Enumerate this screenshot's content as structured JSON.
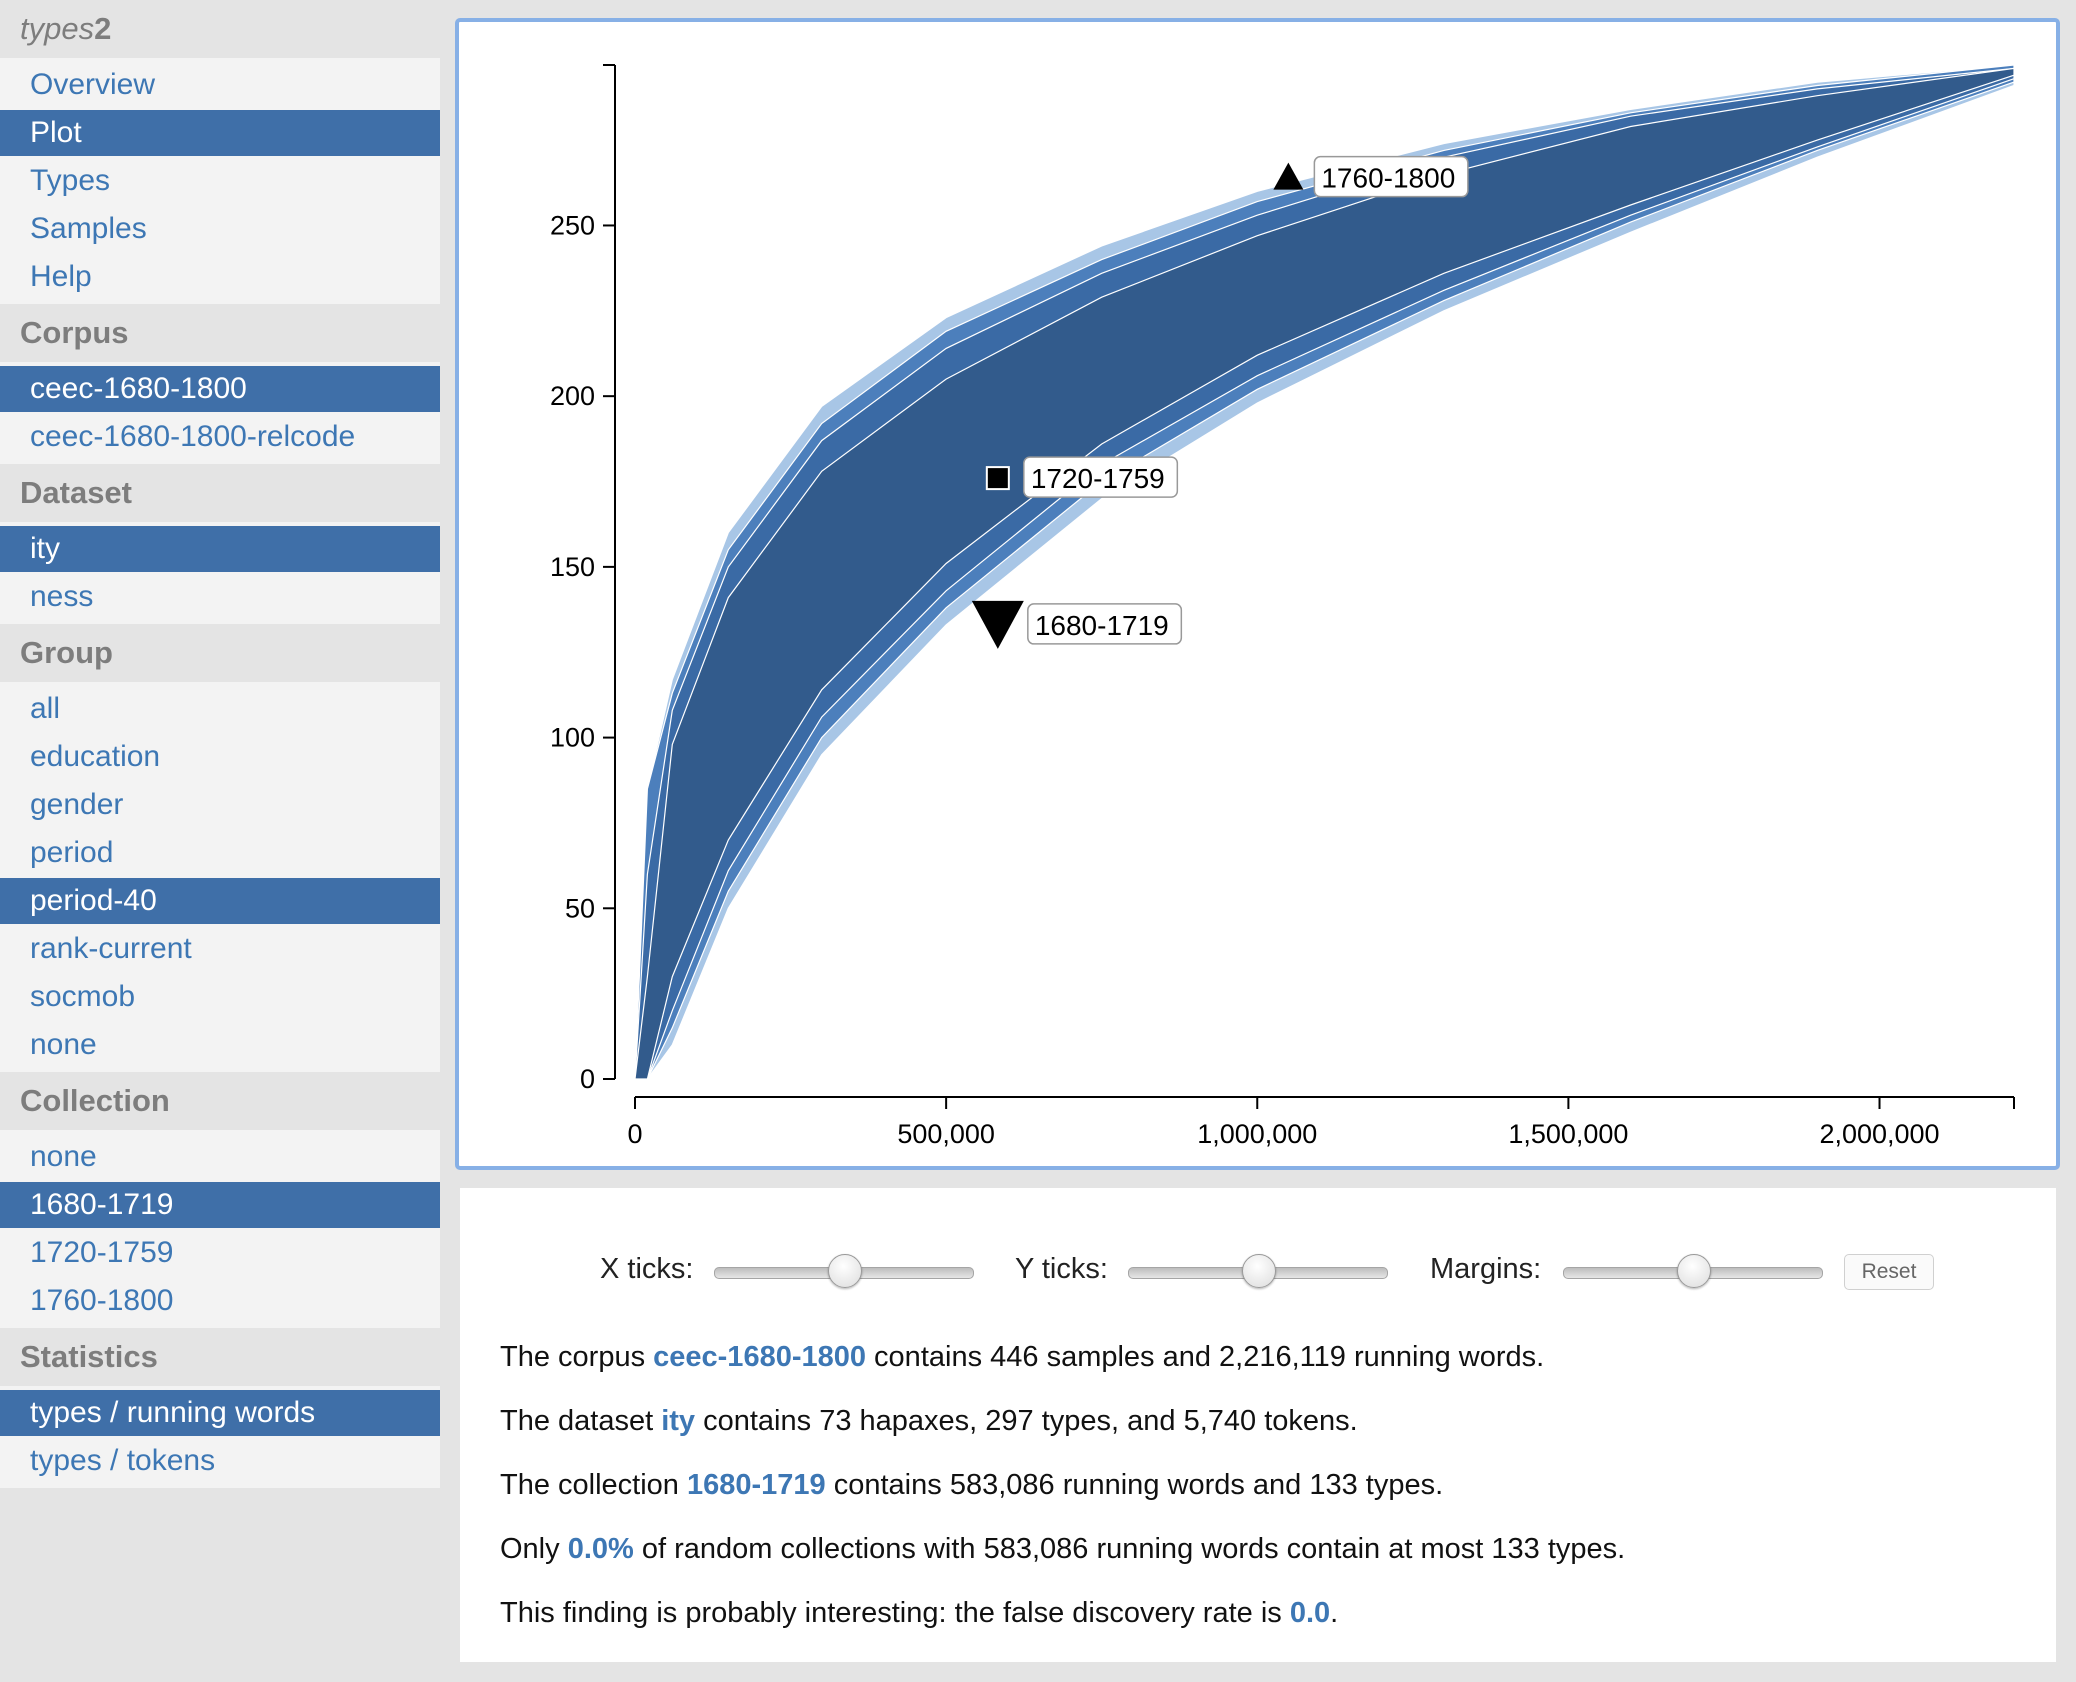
{
  "app_title": {
    "italic": "types",
    "bold": "2"
  },
  "nav": [
    {
      "label": "Overview",
      "selected": false
    },
    {
      "label": "Plot",
      "selected": true
    },
    {
      "label": "Types",
      "selected": false
    },
    {
      "label": "Samples",
      "selected": false
    },
    {
      "label": "Help",
      "selected": false
    }
  ],
  "sections": [
    {
      "title": "Corpus",
      "items": [
        {
          "label": "ceec-1680-1800",
          "selected": true
        },
        {
          "label": "ceec-1680-1800-relcode",
          "selected": false
        }
      ]
    },
    {
      "title": "Dataset",
      "items": [
        {
          "label": "ity",
          "selected": true
        },
        {
          "label": "ness",
          "selected": false
        }
      ]
    },
    {
      "title": "Group",
      "items": [
        {
          "label": "all",
          "selected": false
        },
        {
          "label": "education",
          "selected": false
        },
        {
          "label": "gender",
          "selected": false
        },
        {
          "label": "period",
          "selected": false
        },
        {
          "label": "period-40",
          "selected": true
        },
        {
          "label": "rank-current",
          "selected": false
        },
        {
          "label": "socmob",
          "selected": false
        },
        {
          "label": "none",
          "selected": false
        }
      ]
    },
    {
      "title": "Collection",
      "items": [
        {
          "label": "none",
          "selected": false
        },
        {
          "label": "1680-1719",
          "selected": true
        },
        {
          "label": "1720-1759",
          "selected": false
        },
        {
          "label": "1760-1800",
          "selected": false
        }
      ]
    },
    {
      "title": "Statistics",
      "items": [
        {
          "label": "types / running words",
          "selected": true
        },
        {
          "label": "types / tokens",
          "selected": false
        }
      ]
    }
  ],
  "chart_data": {
    "type": "area",
    "x_ticks": [
      0,
      500000,
      1000000,
      1500000,
      2000000
    ],
    "x_tick_labels": [
      "0",
      "500,000",
      "1,000,000",
      "1,500,000",
      "2,000,000"
    ],
    "y_ticks": [
      0,
      50,
      100,
      150,
      200,
      250
    ],
    "y_tick_labels": [
      "0",
      "50",
      "100",
      "150",
      "200",
      "250"
    ],
    "xlim": [
      0,
      2216119
    ],
    "ylim": [
      0,
      297
    ],
    "bands": [
      {
        "x": [
          0,
          20000,
          60000,
          150000,
          300000,
          500000,
          750000,
          1000000,
          1300000,
          1600000,
          1900000,
          2216119
        ],
        "lower": [
          0,
          0,
          10,
          50,
          95,
          133,
          170,
          198,
          225,
          248,
          270,
          291
        ],
        "upper": [
          0,
          85,
          117,
          160,
          197,
          223,
          244,
          260,
          274,
          284,
          292,
          297
        ],
        "color": "#a8c6e6"
      },
      {
        "x": [
          0,
          20000,
          60000,
          150000,
          300000,
          500000,
          750000,
          1000000,
          1300000,
          1600000,
          1900000,
          2216119
        ],
        "lower": [
          0,
          0,
          15,
          55,
          100,
          138,
          175,
          202,
          228,
          251,
          272,
          292
        ],
        "upper": [
          0,
          85,
          113,
          155,
          192,
          219,
          240,
          257,
          272,
          283,
          291,
          297
        ],
        "color": "#4c7fbc"
      },
      {
        "x": [
          0,
          20000,
          60000,
          150000,
          300000,
          500000,
          750000,
          1000000,
          1300000,
          1600000,
          1900000,
          2216119
        ],
        "lower": [
          0,
          0,
          20,
          61,
          106,
          143,
          180,
          206,
          231,
          253,
          273,
          293
        ],
        "upper": [
          0,
          60,
          108,
          150,
          187,
          214,
          236,
          253,
          270,
          282,
          290,
          296
        ],
        "color": "#3a6aa5"
      },
      {
        "x": [
          0,
          20000,
          60000,
          150000,
          300000,
          500000,
          750000,
          1000000,
          1300000,
          1600000,
          1900000,
          2216119
        ],
        "lower": [
          0,
          0,
          30,
          70,
          114,
          151,
          186,
          212,
          236,
          256,
          275,
          294
        ],
        "upper": [
          0,
          30,
          98,
          141,
          178,
          205,
          229,
          247,
          265,
          279,
          288,
          296
        ],
        "color": "#325b8c"
      }
    ],
    "markers": [
      {
        "shape": "triangle-up",
        "label": "1760-1800",
        "x": 1050000,
        "y": 264
      },
      {
        "shape": "square",
        "label": "1720-1759",
        "x": 583086,
        "y": 176
      },
      {
        "shape": "triangle-down",
        "label": "1680-1719",
        "x": 583086,
        "y": 133
      }
    ]
  },
  "controls": {
    "x_ticks_label": "X ticks:",
    "y_ticks_label": "Y ticks:",
    "margins_label": "Margins:",
    "reset_label": "Reset",
    "x_ticks_value": 0.5,
    "y_ticks_value": 0.5,
    "margins_value": 0.5
  },
  "info": {
    "l1_pre": "The corpus ",
    "l1_link": "ceec-1680-1800",
    "l1_post": " contains 446 samples and 2,216,119 running words.",
    "l2_pre": "The dataset ",
    "l2_link": "ity",
    "l2_post": " contains 73 hapaxes, 297 types, and 5,740 tokens.",
    "l3_pre": "The collection ",
    "l3_link": "1680-1719",
    "l3_post": " contains 583,086 running words and 133 types.",
    "l4_pre": "Only ",
    "l4_link": "0.0%",
    "l4_post": " of random collections with 583,086 running words contain at most 133 types.",
    "l5_pre": "This finding is probably interesting: the false discovery rate is ",
    "l5_link": "0.0",
    "l5_post": "."
  }
}
